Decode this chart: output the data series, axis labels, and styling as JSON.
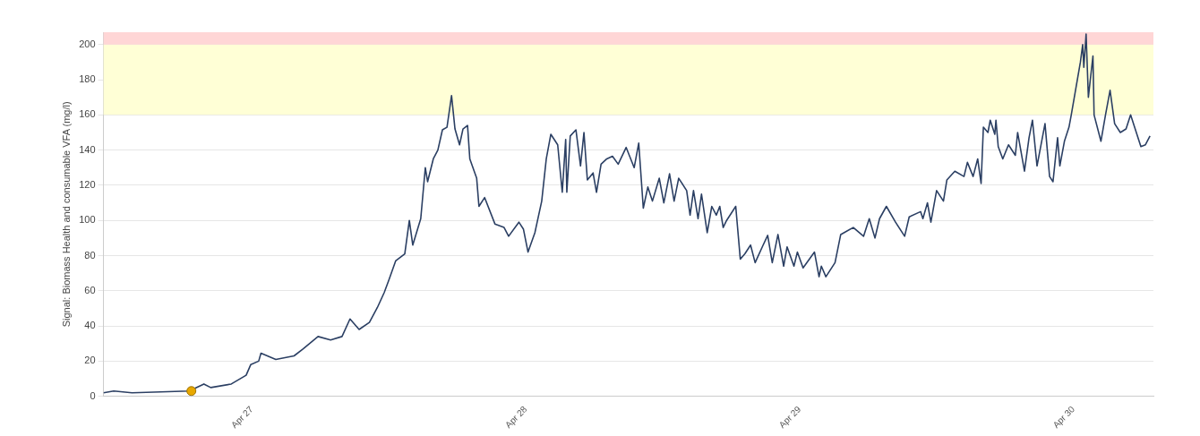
{
  "chart_data": {
    "type": "line",
    "ylabel": "Signal: Biomass Health and consumable VFA (mg/l)",
    "grid": "y",
    "xlim": [
      "--04-26T11:00",
      "--04-30T07:00"
    ],
    "xticks": [
      {
        "value": "--04-27",
        "label": "Apr 27"
      },
      {
        "value": "--04-28",
        "label": "Apr 28"
      },
      {
        "value": "--04-29",
        "label": "Apr 29"
      },
      {
        "value": "--04-30",
        "label": "Apr 30"
      }
    ],
    "ylim": [
      0,
      207
    ],
    "yticks": [
      0,
      20,
      40,
      60,
      80,
      100,
      120,
      140,
      160,
      180,
      200
    ],
    "bands": [
      {
        "axis": "y",
        "from": 160,
        "to": 200,
        "color": "#ffffd6"
      },
      {
        "axis": "y",
        "from": 200,
        "to": 207,
        "color": "#ffd6d6"
      }
    ],
    "series": [
      {
        "color": "#2b3f63",
        "marker": "none",
        "line_style": "solid",
        "x": [
          "--04-26T11:00",
          "--04-26T11:54",
          "--04-26T13:30",
          "--04-26T18:30",
          "--04-26T19:48",
          "--04-26T20:24",
          "--04-26T22:12",
          "--04-26T23:30",
          "--04-26T23:54",
          "--04-27T00:36",
          "--04-27T00:48",
          "--04-27T02:06",
          "--04-27T03:42",
          "--04-27T04:30",
          "--04-27T05:48",
          "--04-27T06:54",
          "--04-27T07:54",
          "--04-27T08:36",
          "--04-27T09:24",
          "--04-27T10:18",
          "--04-27T11:00",
          "--04-27T11:36",
          "--04-27T12:00",
          "--04-27T12:36",
          "--04-27T13:24",
          "--04-27T13:48",
          "--04-27T14:06",
          "--04-27T14:48",
          "--04-27T15:12",
          "--04-27T15:24",
          "--04-27T15:54",
          "--04-27T16:18",
          "--04-27T16:42",
          "--04-27T17:06",
          "--04-27T17:30",
          "--04-27T17:48",
          "--04-27T18:12",
          "--04-27T18:30",
          "--04-27T18:54",
          "--04-27T19:06",
          "--04-27T19:42",
          "--04-27T19:54",
          "--04-27T20:24",
          "--04-27T21:18",
          "--04-27T22:06",
          "--04-27T22:30",
          "--04-27T23:24",
          "--04-27T23:48",
          "--04-28T00:12",
          "--04-28T00:48",
          "--04-28T01:24",
          "--04-28T01:48",
          "--04-28T02:12",
          "--04-28T02:48",
          "--04-28T03:12",
          "--04-28T03:30",
          "--04-28T03:36",
          "--04-28T03:54",
          "--04-28T04:24",
          "--04-28T04:48",
          "--04-28T05:06",
          "--04-28T05:24",
          "--04-28T05:54",
          "--04-28T06:12",
          "--04-28T06:36",
          "--04-28T07:06",
          "--04-28T07:36",
          "--04-28T08:06",
          "--04-28T08:48",
          "--04-28T09:30",
          "--04-28T09:54",
          "--04-28T10:18",
          "--04-28T10:42",
          "--04-28T11:06",
          "--04-28T11:42",
          "--04-28T12:06",
          "--04-28T12:36",
          "--04-28T13:00",
          "--04-28T13:24",
          "--04-28T14:06",
          "--04-28T14:24",
          "--04-28T14:42",
          "--04-28T15:06",
          "--04-28T15:24",
          "--04-28T15:54",
          "--04-28T16:18",
          "--04-28T16:42",
          "--04-28T17:00",
          "--04-28T17:18",
          "--04-28T17:36",
          "--04-28T18:24",
          "--04-28T18:48",
          "--04-28T19:12",
          "--04-28T19:42",
          "--04-28T20:06",
          "--04-28T20:48",
          "--04-28T21:12",
          "--04-28T21:36",
          "--04-28T22:06",
          "--04-28T22:36",
          "--04-28T22:54",
          "--04-28T23:30",
          "--04-28T23:48",
          "--04-29T00:18",
          "--04-29T01:18",
          "--04-29T01:42",
          "--04-29T01:54",
          "--04-29T02:18",
          "--04-29T03:06",
          "--04-29T03:36",
          "--04-29T04:42",
          "--04-29T05:36",
          "--04-29T06:06",
          "--04-29T06:36",
          "--04-29T07:00",
          "--04-29T07:36",
          "--04-29T08:24",
          "--04-29T09:12",
          "--04-29T09:36",
          "--04-29T10:36",
          "--04-29T10:48",
          "--04-29T11:12",
          "--04-29T11:30",
          "--04-29T12:00",
          "--04-29T12:36",
          "--04-29T12:54",
          "--04-29T13:36",
          "--04-29T14:24",
          "--04-29T14:42",
          "--04-29T15:12",
          "--04-29T15:36",
          "--04-29T15:54",
          "--04-29T16:06",
          "--04-29T16:30",
          "--04-29T16:42",
          "--04-29T17:06",
          "--04-29T17:12",
          "--04-29T17:24",
          "--04-29T17:48",
          "--04-29T18:18",
          "--04-29T18:54",
          "--04-29T19:06",
          "--04-29T19:42",
          "--04-29T20:06",
          "--04-29T20:24",
          "--04-29T20:48",
          "--04-29T21:30",
          "--04-29T21:54",
          "--04-29T22:12",
          "--04-29T22:36",
          "--04-29T22:48",
          "--04-29T23:12",
          "--04-29T23:36",
          "--04-29T23:48",
          "--04-30T00:12",
          "--04-30T00:36",
          "--04-30T00:48",
          "--04-30T00:54",
          "--04-30T01:06",
          "--04-30T01:18",
          "--04-30T01:42",
          "--04-30T01:48",
          "--04-30T02:24",
          "--04-30T02:48",
          "--04-30T03:12",
          "--04-30T03:36",
          "--04-30T04:06",
          "--04-30T04:36",
          "--04-30T05:00",
          "--04-30T05:24",
          "--04-30T05:54",
          "--04-30T06:18",
          "--04-30T06:42"
        ],
        "values": [
          2,
          3,
          2,
          3,
          7,
          5,
          7,
          12,
          18,
          20,
          24.5,
          21,
          23,
          27,
          34,
          32,
          34,
          44,
          38,
          42,
          50.5,
          59,
          66,
          77,
          81,
          100,
          86,
          101,
          130,
          122,
          135,
          140,
          151.5,
          153,
          171,
          152,
          143,
          152,
          154,
          135,
          124,
          108,
          113,
          98,
          96,
          91,
          99,
          95,
          82,
          93,
          111,
          135,
          149,
          143,
          116,
          146,
          116,
          148,
          151.5,
          131,
          150,
          123,
          127,
          116,
          132,
          135,
          136.5,
          132,
          141.5,
          130,
          144,
          107,
          119,
          111,
          124,
          110,
          126.5,
          111,
          124,
          117,
          103,
          117,
          101,
          115,
          93,
          108,
          103,
          108,
          96,
          100,
          108,
          78,
          81,
          86,
          76,
          86,
          91.5,
          76,
          92,
          74,
          85,
          74,
          82,
          73,
          82,
          68,
          74,
          68,
          76,
          92,
          96,
          91,
          101,
          90,
          101,
          108,
          99,
          91,
          102,
          105,
          101,
          110,
          99,
          117,
          111,
          123,
          128,
          125,
          133,
          125,
          135,
          121,
          153,
          150,
          157,
          149,
          157,
          142,
          135,
          143,
          137,
          150,
          128,
          147,
          157,
          131,
          155,
          125,
          122,
          147,
          131,
          145,
          153,
          160,
          175,
          190,
          200,
          187,
          206,
          170,
          193.5,
          160,
          145,
          160,
          174,
          155,
          150,
          152,
          160,
          152,
          142,
          143,
          148
        ]
      },
      {
        "type": "scatter",
        "color": "#e8a800",
        "marker": "circle",
        "x": [
          "--04-26T18:42"
        ],
        "values": [
          3
        ]
      }
    ]
  }
}
